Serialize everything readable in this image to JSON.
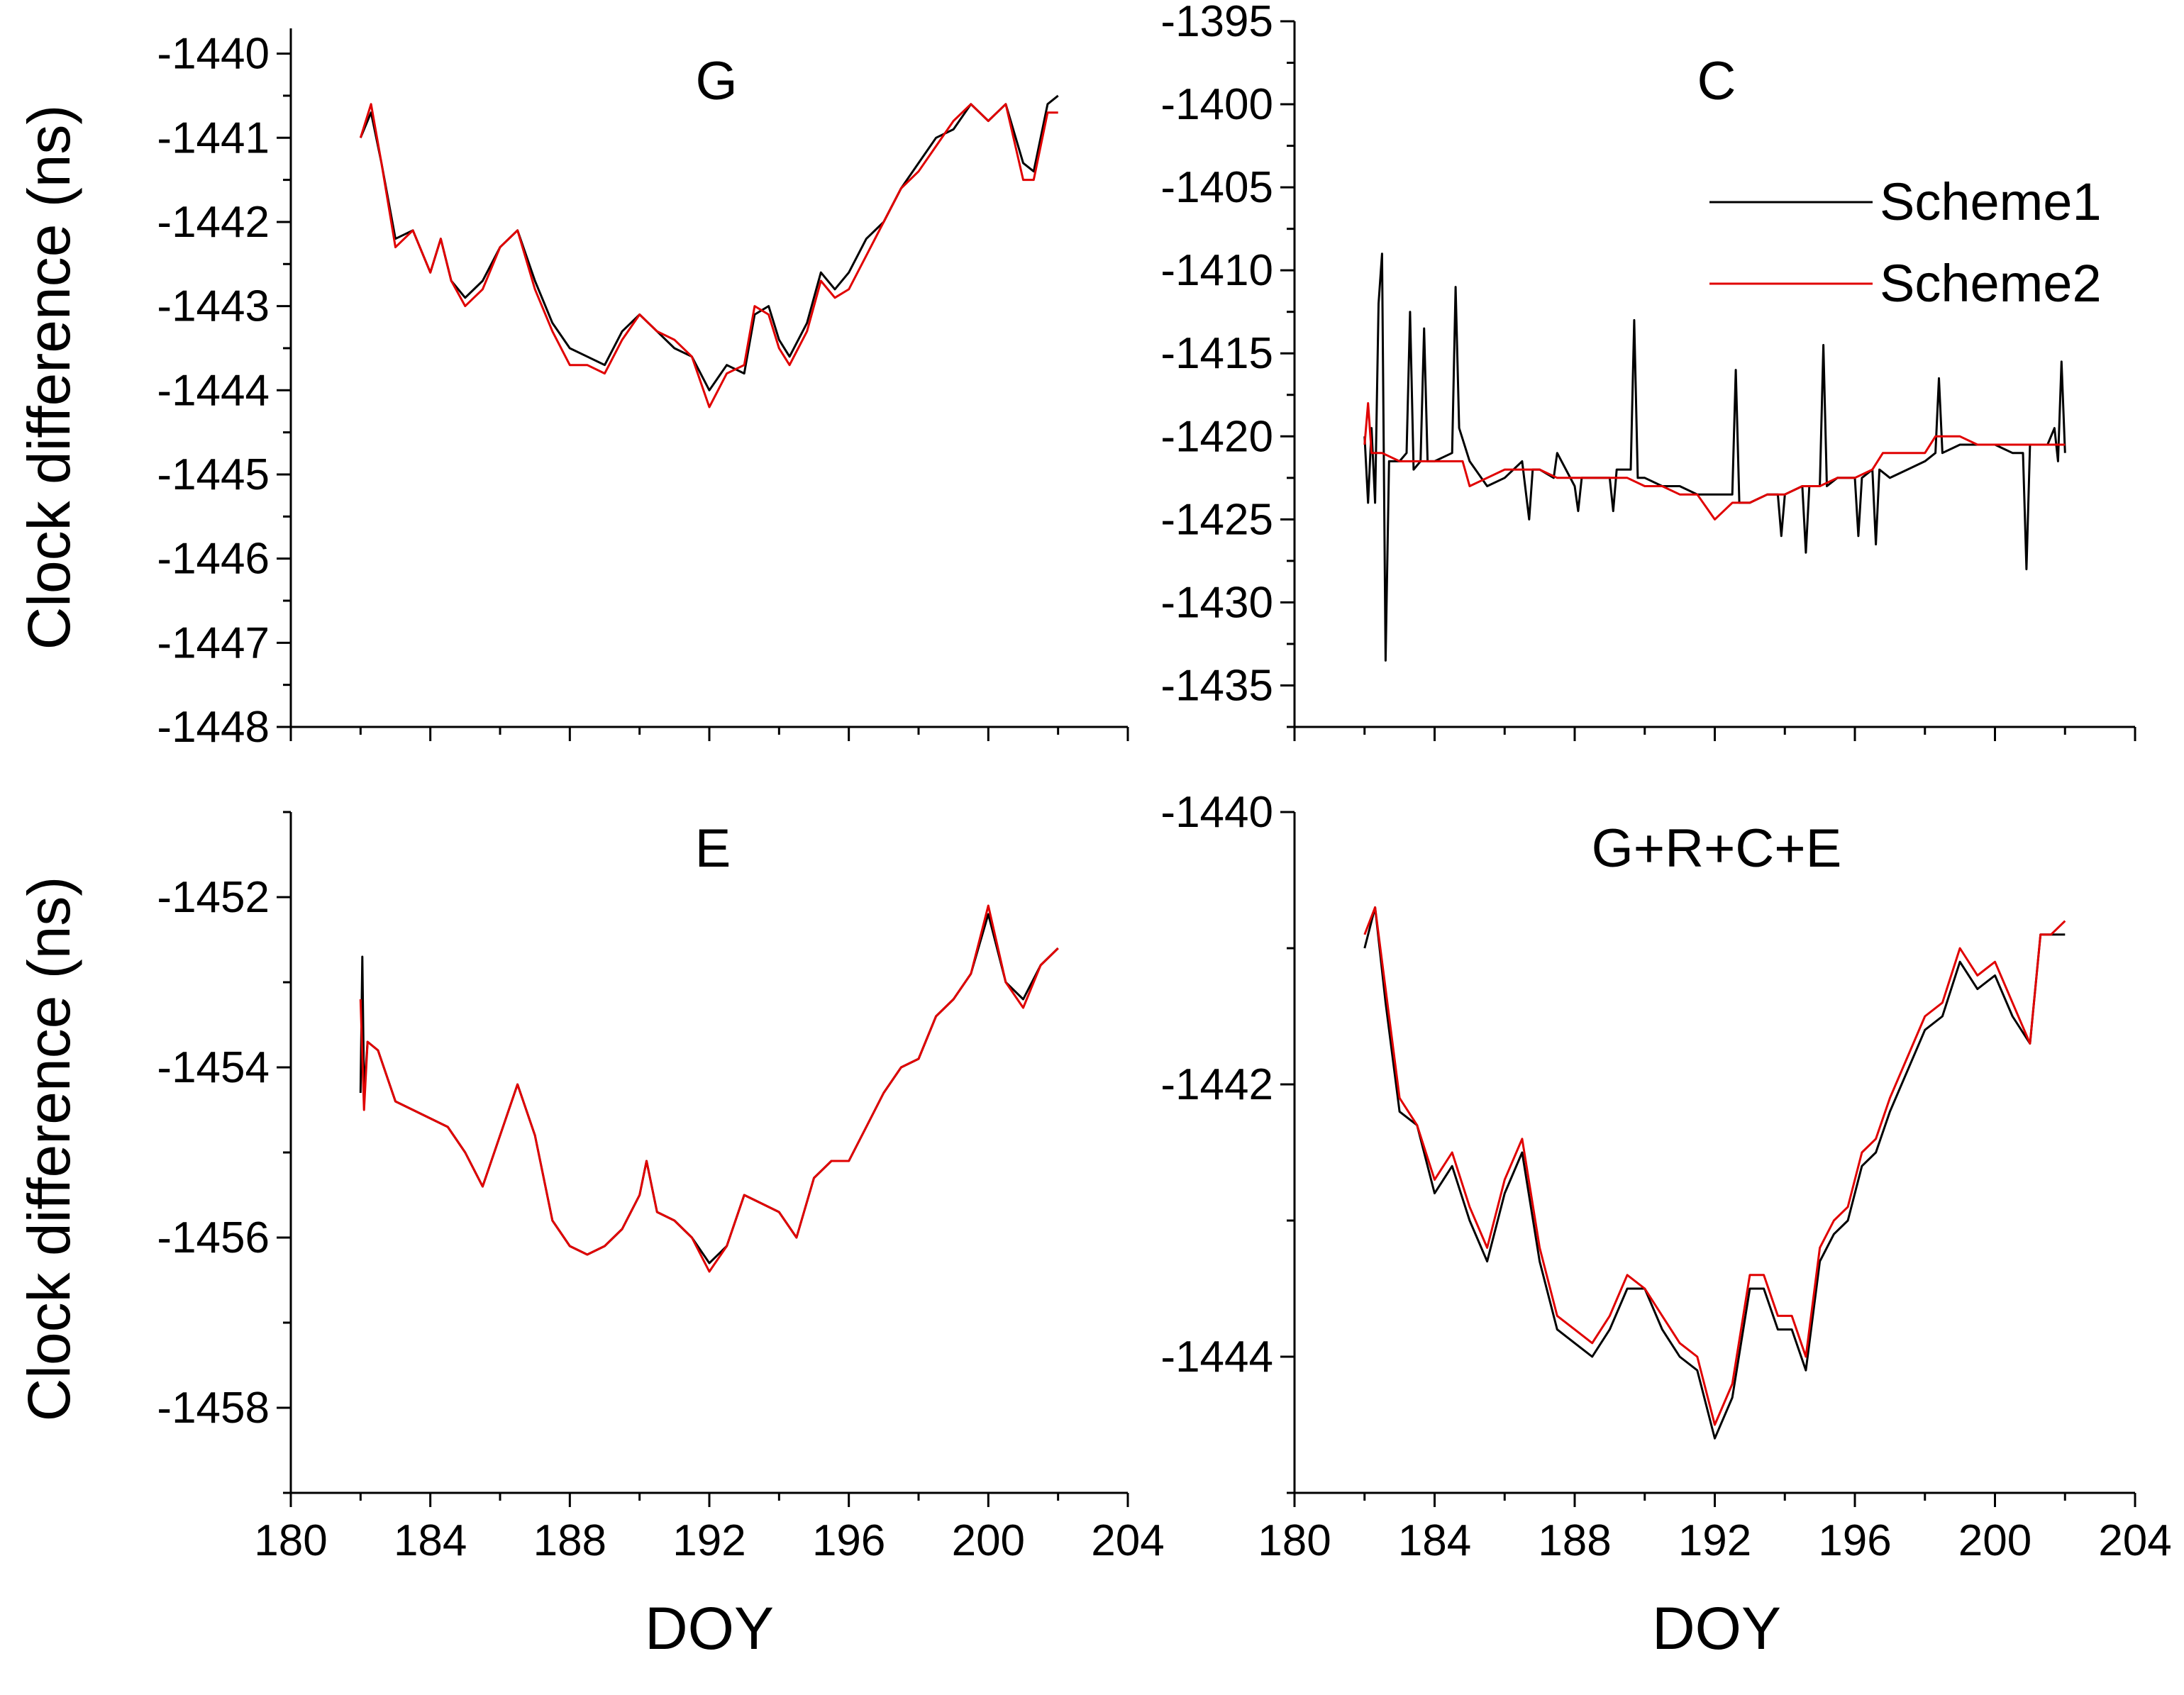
{
  "figure": {
    "y_axis_title": "Clock difference (ns)",
    "x_axis_title": "DOY",
    "legend": [
      {
        "name": "Scheme1",
        "color": "#000000"
      },
      {
        "name": "Scheme2",
        "color": "#e00000"
      }
    ]
  },
  "chart_data": [
    {
      "type": "line",
      "panel": "G",
      "title": "G",
      "xlabel": "DOY",
      "ylabel": "Clock difference (ns)",
      "xlim": [
        180,
        204
      ],
      "ylim": [
        -1448,
        -1439.7
      ],
      "xticks": [
        180,
        184,
        188,
        192,
        196,
        200,
        204
      ],
      "yticks": [
        -1440,
        -1441,
        -1442,
        -1443,
        -1444,
        -1445,
        -1446,
        -1447,
        -1448
      ],
      "series": [
        {
          "name": "Scheme1",
          "color": "#000000",
          "x": [
            182.0,
            182.3,
            182.6,
            183.0,
            183.5,
            184.0,
            184.3,
            184.6,
            185.0,
            185.5,
            186.0,
            186.5,
            187.0,
            187.5,
            188.0,
            188.5,
            189.0,
            189.5,
            190.0,
            190.5,
            191.0,
            191.5,
            192.0,
            192.5,
            193.0,
            193.3,
            193.7,
            194.0,
            194.3,
            194.8,
            195.2,
            195.6,
            196.0,
            196.5,
            197.0,
            197.5,
            198.0,
            198.5,
            199.0,
            199.5,
            200.0,
            200.5,
            201.0,
            201.3,
            201.7,
            202.0
          ],
          "y": [
            -1441.0,
            -1440.7,
            -1441.3,
            -1442.2,
            -1442.1,
            -1442.6,
            -1442.2,
            -1442.7,
            -1442.9,
            -1442.7,
            -1442.3,
            -1442.1,
            -1442.7,
            -1443.2,
            -1443.5,
            -1443.6,
            -1443.7,
            -1443.3,
            -1443.1,
            -1443.3,
            -1443.5,
            -1443.6,
            -1444.0,
            -1443.7,
            -1443.8,
            -1443.1,
            -1443.0,
            -1443.4,
            -1443.6,
            -1443.2,
            -1442.6,
            -1442.8,
            -1442.6,
            -1442.2,
            -1442.0,
            -1441.6,
            -1441.3,
            -1441.0,
            -1440.9,
            -1440.6,
            -1440.8,
            -1440.6,
            -1441.3,
            -1441.4,
            -1440.6,
            -1440.5
          ]
        },
        {
          "name": "Scheme2",
          "color": "#e00000",
          "x": [
            182.0,
            182.3,
            182.6,
            183.0,
            183.5,
            184.0,
            184.3,
            184.6,
            185.0,
            185.5,
            186.0,
            186.5,
            187.0,
            187.5,
            188.0,
            188.5,
            189.0,
            189.5,
            190.0,
            190.5,
            191.0,
            191.5,
            192.0,
            192.5,
            193.0,
            193.3,
            193.7,
            194.0,
            194.3,
            194.8,
            195.2,
            195.6,
            196.0,
            196.5,
            197.0,
            197.5,
            198.0,
            198.5,
            199.0,
            199.5,
            200.0,
            200.5,
            201.0,
            201.3,
            201.7,
            202.0
          ],
          "y": [
            -1441.0,
            -1440.6,
            -1441.3,
            -1442.3,
            -1442.1,
            -1442.6,
            -1442.2,
            -1442.7,
            -1443.0,
            -1442.8,
            -1442.3,
            -1442.1,
            -1442.8,
            -1443.3,
            -1443.7,
            -1443.7,
            -1443.8,
            -1443.4,
            -1443.1,
            -1443.3,
            -1443.4,
            -1443.6,
            -1444.2,
            -1443.8,
            -1443.7,
            -1443.0,
            -1443.1,
            -1443.5,
            -1443.7,
            -1443.3,
            -1442.7,
            -1442.9,
            -1442.8,
            -1442.4,
            -1442.0,
            -1441.6,
            -1441.4,
            -1441.1,
            -1440.8,
            -1440.6,
            -1440.8,
            -1440.6,
            -1441.5,
            -1441.5,
            -1440.7,
            -1440.7
          ]
        }
      ]
    },
    {
      "type": "line",
      "panel": "C",
      "title": "C",
      "xlabel": "DOY",
      "ylabel": "Clock difference (ns)",
      "xlim": [
        180,
        204
      ],
      "ylim": [
        -1437.5,
        -1395
      ],
      "xticks": [
        180,
        184,
        188,
        192,
        196,
        200,
        204
      ],
      "yticks": [
        -1395,
        -1400,
        -1405,
        -1410,
        -1415,
        -1420,
        -1425,
        -1430,
        -1435
      ],
      "series": [
        {
          "name": "Scheme1",
          "color": "#000000",
          "x": [
            182.0,
            182.1,
            182.2,
            182.3,
            182.4,
            182.5,
            182.6,
            182.7,
            182.8,
            183.0,
            183.2,
            183.3,
            183.4,
            183.6,
            183.7,
            183.8,
            184.0,
            184.5,
            184.6,
            184.7,
            185.0,
            185.5,
            186.0,
            186.5,
            186.7,
            186.8,
            187.0,
            187.4,
            187.5,
            188.0,
            188.1,
            188.2,
            188.5,
            189.0,
            189.1,
            189.2,
            189.6,
            189.7,
            189.8,
            190.0,
            190.5,
            191.0,
            191.5,
            192.0,
            192.5,
            192.6,
            192.7,
            193.0,
            193.5,
            193.8,
            193.9,
            194.0,
            194.5,
            194.6,
            194.7,
            195.0,
            195.1,
            195.2,
            195.5,
            196.0,
            196.1,
            196.2,
            196.5,
            196.6,
            196.7,
            197.0,
            197.5,
            198.0,
            198.3,
            198.4,
            198.5,
            199.0,
            199.5,
            200.0,
            200.5,
            200.8,
            200.9,
            201.0,
            201.5,
            201.7,
            201.8,
            201.9,
            202.0
          ],
          "y": [
            -1420.0,
            -1424.0,
            -1419.5,
            -1424.0,
            -1412.0,
            -1409.0,
            -1433.5,
            -1421.5,
            -1421.5,
            -1421.5,
            -1421.0,
            -1412.5,
            -1422.0,
            -1421.5,
            -1413.5,
            -1421.5,
            -1421.5,
            -1421.0,
            -1411.0,
            -1419.5,
            -1421.5,
            -1423.0,
            -1422.5,
            -1421.5,
            -1425.0,
            -1422.0,
            -1422.0,
            -1422.5,
            -1421.0,
            -1423.0,
            -1424.5,
            -1422.5,
            -1422.5,
            -1422.5,
            -1424.5,
            -1422.0,
            -1422.0,
            -1413.0,
            -1422.5,
            -1422.5,
            -1423.0,
            -1423.0,
            -1423.5,
            -1423.5,
            -1423.5,
            -1416.0,
            -1424.0,
            -1424.0,
            -1423.5,
            -1423.5,
            -1426.0,
            -1423.5,
            -1423.0,
            -1427.0,
            -1423.0,
            -1423.0,
            -1414.5,
            -1423.0,
            -1422.5,
            -1422.5,
            -1426.0,
            -1422.5,
            -1422.0,
            -1426.5,
            -1422.0,
            -1422.5,
            -1422.0,
            -1421.5,
            -1421.0,
            -1416.5,
            -1421.0,
            -1420.5,
            -1420.5,
            -1420.5,
            -1421.0,
            -1421.0,
            -1428.0,
            -1420.5,
            -1420.5,
            -1419.5,
            -1421.5,
            -1415.5,
            -1421.0
          ]
        },
        {
          "name": "Scheme2",
          "color": "#e00000",
          "x": [
            182.0,
            182.1,
            182.2,
            182.5,
            183.0,
            183.5,
            184.0,
            184.5,
            184.8,
            185.0,
            185.5,
            186.0,
            186.5,
            187.0,
            187.5,
            188.0,
            188.5,
            189.0,
            189.5,
            190.0,
            190.5,
            191.0,
            191.5,
            192.0,
            192.5,
            193.0,
            193.5,
            194.0,
            194.5,
            195.0,
            195.5,
            196.0,
            196.5,
            196.8,
            197.0,
            197.5,
            198.0,
            198.3,
            198.5,
            199.0,
            199.5,
            200.0,
            200.5,
            201.0,
            201.5,
            202.0
          ],
          "y": [
            -1420.5,
            -1418.0,
            -1421.0,
            -1421.0,
            -1421.5,
            -1421.5,
            -1421.5,
            -1421.5,
            -1421.5,
            -1423.0,
            -1422.5,
            -1422.0,
            -1422.0,
            -1422.0,
            -1422.5,
            -1422.5,
            -1422.5,
            -1422.5,
            -1422.5,
            -1423.0,
            -1423.0,
            -1423.5,
            -1423.5,
            -1425.0,
            -1424.0,
            -1424.0,
            -1423.5,
            -1423.5,
            -1423.0,
            -1423.0,
            -1422.5,
            -1422.5,
            -1422.0,
            -1421.0,
            -1421.0,
            -1421.0,
            -1421.0,
            -1420.0,
            -1420.0,
            -1420.0,
            -1420.5,
            -1420.5,
            -1420.5,
            -1420.5,
            -1420.5,
            -1420.5
          ]
        }
      ]
    },
    {
      "type": "line",
      "panel": "E",
      "title": "E",
      "xlabel": "DOY",
      "ylabel": "Clock difference (ns)",
      "xlim": [
        180,
        204
      ],
      "ylim": [
        -1459,
        -1451
      ],
      "xticks": [
        180,
        184,
        188,
        192,
        196,
        200,
        204
      ],
      "yticks": [
        -1452,
        -1454,
        -1456,
        -1458
      ],
      "series": [
        {
          "name": "Scheme1",
          "color": "#000000",
          "x": [
            182.0,
            182.05,
            182.1,
            182.2,
            182.5,
            183.0,
            183.5,
            184.0,
            184.5,
            185.0,
            185.5,
            186.0,
            186.5,
            187.0,
            187.5,
            188.0,
            188.5,
            189.0,
            189.5,
            190.0,
            190.2,
            190.5,
            191.0,
            191.5,
            192.0,
            192.5,
            193.0,
            193.5,
            194.0,
            194.5,
            195.0,
            195.5,
            196.0,
            196.5,
            197.0,
            197.5,
            198.0,
            198.5,
            199.0,
            199.5,
            200.0,
            200.5,
            201.0,
            201.5,
            202.0
          ],
          "y": [
            -1454.3,
            -1452.7,
            -1454.3,
            -1453.7,
            -1453.8,
            -1454.4,
            -1454.5,
            -1454.6,
            -1454.7,
            -1455.0,
            -1455.4,
            -1454.8,
            -1454.2,
            -1454.8,
            -1455.8,
            -1456.1,
            -1456.2,
            -1456.1,
            -1455.9,
            -1455.5,
            -1455.1,
            -1455.7,
            -1455.8,
            -1456.0,
            -1456.3,
            -1456.1,
            -1455.5,
            -1455.6,
            -1455.7,
            -1456.0,
            -1455.3,
            -1455.1,
            -1455.1,
            -1454.7,
            -1454.3,
            -1454.0,
            -1453.9,
            -1453.4,
            -1453.2,
            -1452.9,
            -1452.2,
            -1453.0,
            -1453.2,
            -1452.8,
            -1452.6
          ]
        },
        {
          "name": "Scheme2",
          "color": "#e00000",
          "x": [
            182.0,
            182.1,
            182.2,
            182.5,
            183.0,
            183.5,
            184.0,
            184.5,
            185.0,
            185.5,
            186.0,
            186.5,
            187.0,
            187.5,
            188.0,
            188.5,
            189.0,
            189.5,
            190.0,
            190.2,
            190.5,
            191.0,
            191.5,
            192.0,
            192.5,
            193.0,
            193.5,
            194.0,
            194.5,
            195.0,
            195.5,
            196.0,
            196.5,
            197.0,
            197.5,
            198.0,
            198.5,
            199.0,
            199.5,
            200.0,
            200.5,
            201.0,
            201.5,
            202.0
          ],
          "y": [
            -1453.2,
            -1454.5,
            -1453.7,
            -1453.8,
            -1454.4,
            -1454.5,
            -1454.6,
            -1454.7,
            -1455.0,
            -1455.4,
            -1454.8,
            -1454.2,
            -1454.8,
            -1455.8,
            -1456.1,
            -1456.2,
            -1456.1,
            -1455.9,
            -1455.5,
            -1455.1,
            -1455.7,
            -1455.8,
            -1456.0,
            -1456.4,
            -1456.1,
            -1455.5,
            -1455.6,
            -1455.7,
            -1456.0,
            -1455.3,
            -1455.1,
            -1455.1,
            -1454.7,
            -1454.3,
            -1454.0,
            -1453.9,
            -1453.4,
            -1453.2,
            -1452.9,
            -1452.1,
            -1453.0,
            -1453.3,
            -1452.8,
            -1452.6
          ]
        }
      ]
    },
    {
      "type": "line",
      "panel": "G+R+C+E",
      "title": "G+R+C+E",
      "xlabel": "DOY",
      "ylabel": "Clock difference (ns)",
      "xlim": [
        180,
        204
      ],
      "ylim": [
        -1445,
        -1440
      ],
      "xticks": [
        180,
        184,
        188,
        192,
        196,
        200,
        204
      ],
      "yticks": [
        -1440,
        -1442,
        -1444
      ],
      "series": [
        {
          "name": "Scheme1",
          "color": "#000000",
          "x": [
            182.0,
            182.3,
            182.6,
            183.0,
            183.5,
            184.0,
            184.5,
            185.0,
            185.5,
            186.0,
            186.5,
            187.0,
            187.5,
            188.0,
            188.5,
            189.0,
            189.5,
            190.0,
            190.5,
            191.0,
            191.5,
            192.0,
            192.5,
            193.0,
            193.4,
            193.8,
            194.2,
            194.6,
            195.0,
            195.4,
            195.8,
            196.2,
            196.6,
            197.0,
            197.5,
            198.0,
            198.5,
            199.0,
            199.5,
            200.0,
            200.5,
            201.0,
            201.3,
            201.6,
            202.0
          ],
          "y": [
            -1441.0,
            -1440.7,
            -1441.4,
            -1442.2,
            -1442.3,
            -1442.8,
            -1442.6,
            -1443.0,
            -1443.3,
            -1442.8,
            -1442.5,
            -1443.3,
            -1443.8,
            -1443.9,
            -1444.0,
            -1443.8,
            -1443.5,
            -1443.5,
            -1443.8,
            -1444.0,
            -1444.1,
            -1444.6,
            -1444.3,
            -1443.5,
            -1443.5,
            -1443.8,
            -1443.8,
            -1444.1,
            -1443.3,
            -1443.1,
            -1443.0,
            -1442.6,
            -1442.5,
            -1442.2,
            -1441.9,
            -1441.6,
            -1441.5,
            -1441.1,
            -1441.3,
            -1441.2,
            -1441.5,
            -1441.7,
            -1440.9,
            -1440.9,
            -1440.9
          ]
        },
        {
          "name": "Scheme2",
          "color": "#e00000",
          "x": [
            182.0,
            182.3,
            182.6,
            183.0,
            183.5,
            184.0,
            184.5,
            185.0,
            185.5,
            186.0,
            186.5,
            187.0,
            187.5,
            188.0,
            188.5,
            189.0,
            189.5,
            190.0,
            190.5,
            191.0,
            191.5,
            192.0,
            192.5,
            193.0,
            193.4,
            193.8,
            194.2,
            194.6,
            195.0,
            195.4,
            195.8,
            196.2,
            196.6,
            197.0,
            197.5,
            198.0,
            198.5,
            199.0,
            199.5,
            200.0,
            200.5,
            201.0,
            201.3,
            201.6,
            202.0
          ],
          "y": [
            -1440.9,
            -1440.7,
            -1441.3,
            -1442.1,
            -1442.3,
            -1442.7,
            -1442.5,
            -1442.9,
            -1443.2,
            -1442.7,
            -1442.4,
            -1443.2,
            -1443.7,
            -1443.8,
            -1443.9,
            -1443.7,
            -1443.4,
            -1443.5,
            -1443.7,
            -1443.9,
            -1444.0,
            -1444.5,
            -1444.2,
            -1443.4,
            -1443.4,
            -1443.7,
            -1443.7,
            -1444.0,
            -1443.2,
            -1443.0,
            -1442.9,
            -1442.5,
            -1442.4,
            -1442.1,
            -1441.8,
            -1441.5,
            -1441.4,
            -1441.0,
            -1441.2,
            -1441.1,
            -1441.4,
            -1441.7,
            -1440.9,
            -1440.9,
            -1440.8
          ]
        }
      ]
    }
  ]
}
